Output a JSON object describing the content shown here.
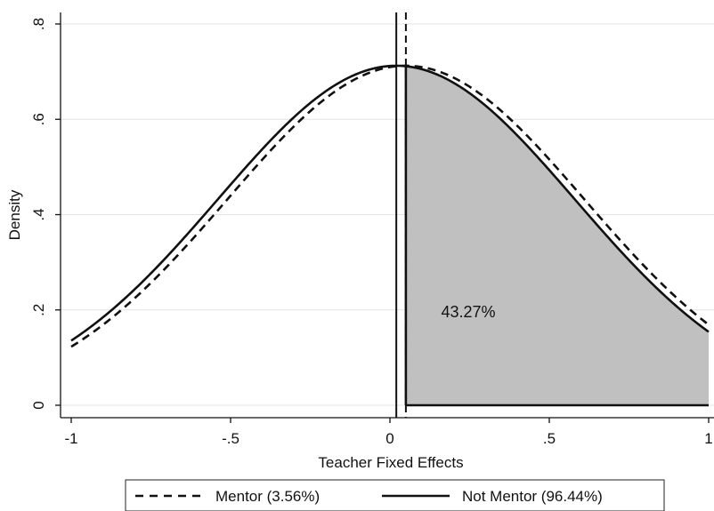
{
  "chart_data": {
    "type": "line",
    "title": "",
    "xlabel": "Teacher Fixed Effects",
    "ylabel": "Density",
    "xlim": [
      -1,
      1
    ],
    "ylim": [
      0,
      0.8
    ],
    "x_ticks": [
      -1,
      -0.5,
      0,
      0.5,
      1
    ],
    "x_tick_labels": [
      "-1",
      "-.5",
      "0",
      ".5",
      "1"
    ],
    "y_ticks": [
      0,
      0.2,
      0.4,
      0.6,
      0.8
    ],
    "y_tick_labels": [
      "0",
      ".2",
      ".4",
      ".6",
      ".8"
    ],
    "grid": true,
    "legend_position": "bottom",
    "series": [
      {
        "name": "Mentor (3.56%)",
        "style": "dashed",
        "color": "#111111",
        "distribution": "normal",
        "mean": 0.05,
        "sd": 0.56,
        "vertical_line_x": 0.05
      },
      {
        "name": "Not Mentor (96.44%)",
        "style": "solid",
        "color": "#111111",
        "distribution": "normal",
        "mean": 0.02,
        "sd": 0.56,
        "vertical_line_x": 0.02
      }
    ],
    "shaded_region": {
      "series": "Not Mentor (96.44%)",
      "x_from": 0.05,
      "x_to": 1.0,
      "fill": "#c0c0c0"
    },
    "annotations": [
      {
        "text": "43.27%",
        "x": 0.25,
        "y": 0.2
      }
    ]
  }
}
